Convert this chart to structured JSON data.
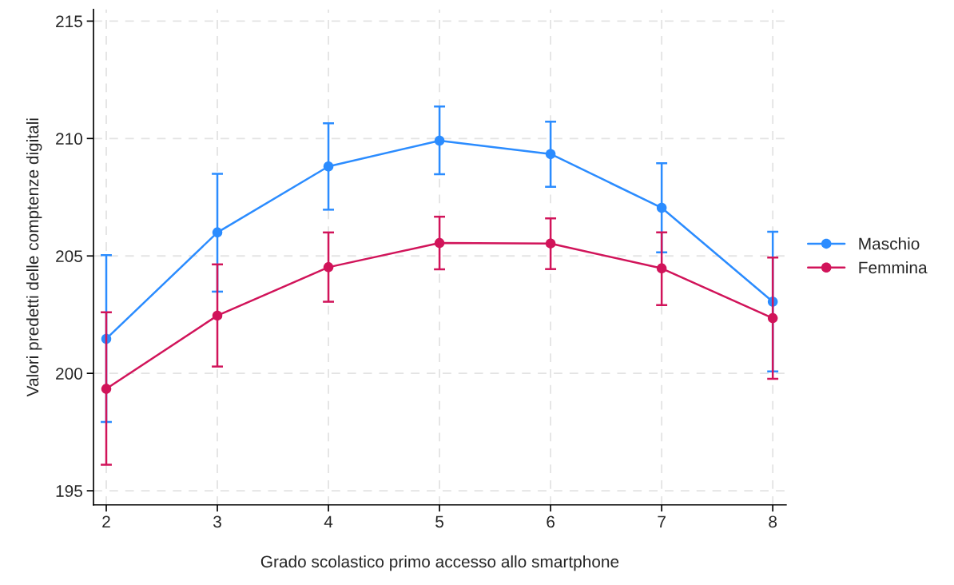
{
  "chart_data": {
    "type": "line",
    "xlabel": "Grado scolastico primo accesso allo smartphone",
    "ylabel": "Valori predetti delle comptenze digitali",
    "x": [
      2,
      3,
      4,
      5,
      6,
      7,
      8
    ],
    "xlim": [
      1.885,
      8.12
    ],
    "xticks": [
      2,
      3,
      4,
      5,
      6,
      7,
      8
    ],
    "ylim": [
      194.4,
      215.5
    ],
    "yticks": [
      195,
      200,
      205,
      210,
      215
    ],
    "grid": true,
    "legend": "right",
    "marker": "circle",
    "line_style": "solid",
    "series": [
      {
        "name": "Maschio",
        "color": "#2b8cff",
        "values": [
          201.47,
          206.0,
          208.81,
          209.91,
          209.34,
          207.05,
          203.05
        ],
        "errors": [
          [
            197.93,
            205.03
          ],
          [
            203.48,
            208.5
          ],
          [
            206.97,
            210.65
          ],
          [
            208.48,
            211.36
          ],
          [
            207.94,
            210.72
          ],
          [
            205.15,
            208.95
          ],
          [
            200.08,
            206.03
          ]
        ]
      },
      {
        "name": "Femmina",
        "color": "#d1145a",
        "values": [
          199.34,
          202.46,
          204.52,
          205.55,
          205.53,
          204.47,
          202.35
        ],
        "errors": [
          [
            196.11,
            202.6
          ],
          [
            200.29,
            204.64
          ],
          [
            203.05,
            206.0
          ],
          [
            204.43,
            206.67
          ],
          [
            204.44,
            206.6
          ],
          [
            202.91,
            206.0
          ],
          [
            199.77,
            204.93
          ]
        ]
      }
    ]
  }
}
